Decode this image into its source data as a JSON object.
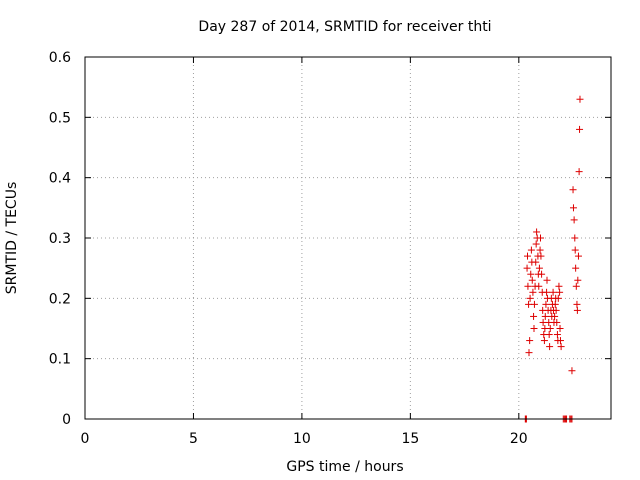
{
  "chart_data": {
    "type": "scatter",
    "title": "Day 287 of 2014, SRMTID for receiver thti",
    "xlabel": "GPS time / hours",
    "ylabel": "SRMTID / TECUs",
    "xlim": [
      0,
      24.25
    ],
    "ylim": [
      0,
      0.6
    ],
    "xticks": [
      0,
      5,
      10,
      15,
      20
    ],
    "xtick_labels": [
      "0",
      "5",
      "10",
      "15",
      "20"
    ],
    "yticks": [
      0,
      0.1,
      0.2,
      0.3,
      0.4,
      0.5,
      0.6
    ],
    "ytick_labels": [
      "0",
      "0.1",
      "0.2",
      "0.3",
      "0.4",
      "0.5",
      "0.6"
    ],
    "grid": true,
    "marker": "+",
    "colors": {
      "series": "#dd0000",
      "grid": "#a0a0a0",
      "axis": "#000000"
    },
    "series": [
      {
        "name": "SRMTID",
        "points": [
          [
            20.3,
            0.0
          ],
          [
            20.32,
            0.0
          ],
          [
            20.35,
            0.0
          ],
          [
            20.38,
            0.25
          ],
          [
            20.4,
            0.27
          ],
          [
            20.42,
            0.22
          ],
          [
            20.45,
            0.19
          ],
          [
            20.47,
            0.11
          ],
          [
            20.5,
            0.13
          ],
          [
            20.52,
            0.2
          ],
          [
            20.55,
            0.24
          ],
          [
            20.58,
            0.28
          ],
          [
            20.6,
            0.26
          ],
          [
            20.62,
            0.23
          ],
          [
            20.65,
            0.21
          ],
          [
            20.68,
            0.17
          ],
          [
            20.7,
            0.15
          ],
          [
            20.72,
            0.19
          ],
          [
            20.75,
            0.22
          ],
          [
            20.78,
            0.26
          ],
          [
            20.8,
            0.29
          ],
          [
            20.82,
            0.31
          ],
          [
            20.85,
            0.3
          ],
          [
            20.88,
            0.27
          ],
          [
            20.9,
            0.24
          ],
          [
            20.92,
            0.22
          ],
          [
            20.95,
            0.25
          ],
          [
            20.98,
            0.28
          ],
          [
            21.0,
            0.3
          ],
          [
            21.02,
            0.27
          ],
          [
            21.05,
            0.24
          ],
          [
            21.08,
            0.21
          ],
          [
            21.1,
            0.18
          ],
          [
            21.12,
            0.16
          ],
          [
            21.15,
            0.14
          ],
          [
            21.18,
            0.13
          ],
          [
            21.2,
            0.15
          ],
          [
            21.22,
            0.17
          ],
          [
            21.25,
            0.19
          ],
          [
            21.28,
            0.21
          ],
          [
            21.3,
            0.23
          ],
          [
            21.32,
            0.2
          ],
          [
            21.35,
            0.18
          ],
          [
            21.38,
            0.16
          ],
          [
            21.4,
            0.14
          ],
          [
            21.42,
            0.12
          ],
          [
            21.45,
            0.15
          ],
          [
            21.48,
            0.18
          ],
          [
            21.5,
            0.2
          ],
          [
            21.52,
            0.17
          ],
          [
            21.55,
            0.19
          ],
          [
            21.58,
            0.21
          ],
          [
            21.6,
            0.18
          ],
          [
            21.62,
            0.16
          ],
          [
            21.65,
            0.17
          ],
          [
            21.68,
            0.19
          ],
          [
            21.7,
            0.2
          ],
          [
            21.72,
            0.18
          ],
          [
            21.75,
            0.16
          ],
          [
            21.78,
            0.14
          ],
          [
            21.8,
            0.13
          ],
          [
            21.82,
            0.2
          ],
          [
            21.85,
            0.22
          ],
          [
            21.88,
            0.21
          ],
          [
            21.9,
            0.15
          ],
          [
            21.92,
            0.13
          ],
          [
            21.95,
            0.12
          ],
          [
            22.05,
            0.0
          ],
          [
            22.1,
            0.0
          ],
          [
            22.15,
            0.0
          ],
          [
            22.2,
            0.0
          ],
          [
            22.35,
            0.0
          ],
          [
            22.4,
            0.0
          ],
          [
            22.45,
            0.0
          ],
          [
            22.45,
            0.08
          ],
          [
            22.5,
            0.38
          ],
          [
            22.52,
            0.35
          ],
          [
            22.55,
            0.33
          ],
          [
            22.58,
            0.3
          ],
          [
            22.6,
            0.28
          ],
          [
            22.62,
            0.25
          ],
          [
            22.65,
            0.22
          ],
          [
            22.68,
            0.19
          ],
          [
            22.7,
            0.18
          ],
          [
            22.72,
            0.23
          ],
          [
            22.75,
            0.27
          ],
          [
            22.78,
            0.41
          ],
          [
            22.8,
            0.48
          ],
          [
            22.82,
            0.53
          ]
        ]
      }
    ]
  }
}
